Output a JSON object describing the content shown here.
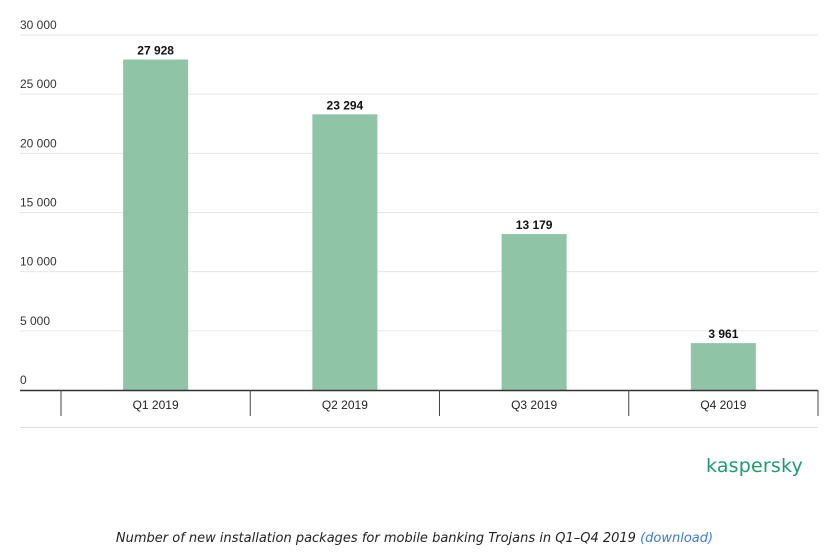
{
  "chart_data": {
    "type": "bar",
    "categories": [
      "Q1 2019",
      "Q2 2019",
      "Q3 2019",
      "Q4 2019"
    ],
    "values": [
      27928,
      23294,
      13179,
      3961
    ],
    "value_labels": [
      "27 928",
      "23 294",
      "13 179",
      "3 961"
    ],
    "y_ticks": [
      0,
      5000,
      10000,
      15000,
      20000,
      25000,
      30000
    ],
    "y_tick_labels": [
      "0",
      "5 000",
      "10 000",
      "15 000",
      "20 000",
      "25 000",
      "30 000"
    ],
    "ylim": [
      0,
      30000
    ],
    "grid": true,
    "bar_color": "#8fc4a6"
  },
  "logo": {
    "text": "kaspersky",
    "color": "#1a9d6e"
  },
  "caption": {
    "text": "Number of new installation packages for mobile banking Trojans in Q1–Q4 2019",
    "link_text": "(download)"
  }
}
